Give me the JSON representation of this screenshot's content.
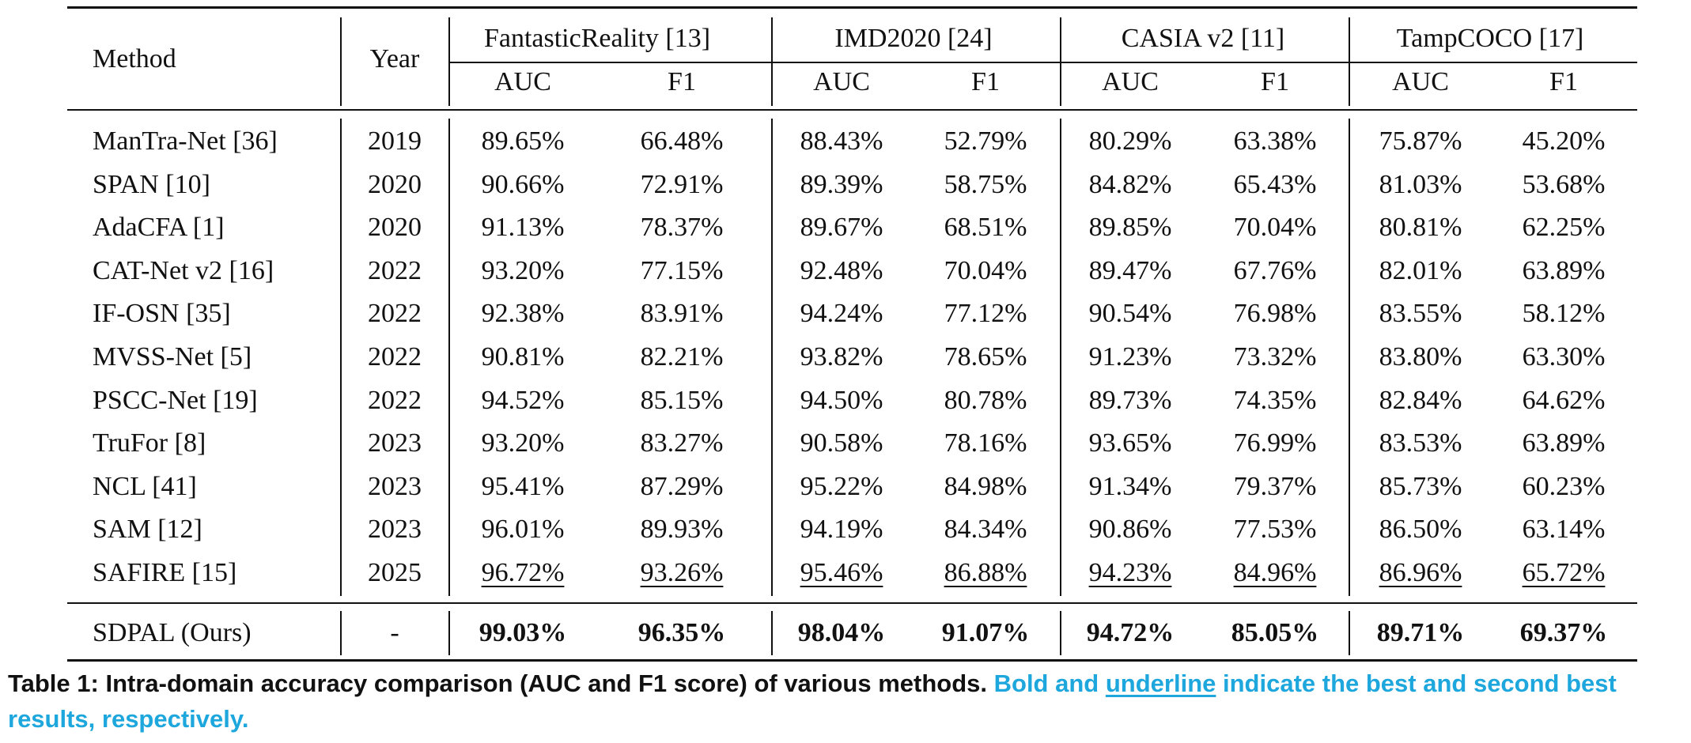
{
  "table": {
    "method_header": "Method",
    "year_header": "Year",
    "datasets": [
      "FantasticReality [13]",
      "IMD2020 [24]",
      "CASIA v2 [11]",
      "TampCOCO [17]"
    ],
    "metrics": [
      "AUC",
      "F1"
    ],
    "rows": [
      {
        "method": "ManTra-Net [36]",
        "year": "2019",
        "values": [
          "89.65%",
          "66.48%",
          "88.43%",
          "52.79%",
          "80.29%",
          "63.38%",
          "75.87%",
          "45.20%"
        ]
      },
      {
        "method": "SPAN [10]",
        "year": "2020",
        "values": [
          "90.66%",
          "72.91%",
          "89.39%",
          "58.75%",
          "84.82%",
          "65.43%",
          "81.03%",
          "53.68%"
        ]
      },
      {
        "method": "AdaCFA [1]",
        "year": "2020",
        "values": [
          "91.13%",
          "78.37%",
          "89.67%",
          "68.51%",
          "89.85%",
          "70.04%",
          "80.81%",
          "62.25%"
        ]
      },
      {
        "method": "CAT-Net v2 [16]",
        "year": "2022",
        "values": [
          "93.20%",
          "77.15%",
          "92.48%",
          "70.04%",
          "89.47%",
          "67.76%",
          "82.01%",
          "63.89%"
        ]
      },
      {
        "method": "IF-OSN [35]",
        "year": "2022",
        "values": [
          "92.38%",
          "83.91%",
          "94.24%",
          "77.12%",
          "90.54%",
          "76.98%",
          "83.55%",
          "58.12%"
        ]
      },
      {
        "method": "MVSS-Net [5]",
        "year": "2022",
        "values": [
          "90.81%",
          "82.21%",
          "93.82%",
          "78.65%",
          "91.23%",
          "73.32%",
          "83.80%",
          "63.30%"
        ]
      },
      {
        "method": "PSCC-Net [19]",
        "year": "2022",
        "values": [
          "94.52%",
          "85.15%",
          "94.50%",
          "80.78%",
          "89.73%",
          "74.35%",
          "82.84%",
          "64.62%"
        ]
      },
      {
        "method": "TruFor [8]",
        "year": "2023",
        "values": [
          "93.20%",
          "83.27%",
          "90.58%",
          "78.16%",
          "93.65%",
          "76.99%",
          "83.53%",
          "63.89%"
        ]
      },
      {
        "method": "NCL [41]",
        "year": "2023",
        "values": [
          "95.41%",
          "87.29%",
          "95.22%",
          "84.98%",
          "91.34%",
          "79.37%",
          "85.73%",
          "60.23%"
        ]
      },
      {
        "method": "SAM [12]",
        "year": "2023",
        "values": [
          "96.01%",
          "89.93%",
          "94.19%",
          "84.34%",
          "90.86%",
          "77.53%",
          "86.50%",
          "63.14%"
        ]
      },
      {
        "method": "SAFIRE [15]",
        "year": "2025",
        "values": [
          "96.72%",
          "93.26%",
          "95.46%",
          "86.88%",
          "94.23%",
          "84.96%",
          "86.96%",
          "65.72%"
        ],
        "style": "underline"
      }
    ],
    "ours": {
      "method": "SDPAL (Ours)",
      "year": "-",
      "values": [
        "99.03%",
        "96.35%",
        "98.04%",
        "91.07%",
        "94.72%",
        "85.05%",
        "89.71%",
        "69.37%"
      ],
      "style": "bold"
    }
  },
  "caption": {
    "label_bold": "Table 1: Intra-domain accuracy comparison (AUC and F1 score) of various methods.",
    "note_part1": "Bold and",
    "note_underline": "underline",
    "note_part2": "indicate the best and second best results, respectively.",
    "accent_color": "#1ea7dd"
  }
}
